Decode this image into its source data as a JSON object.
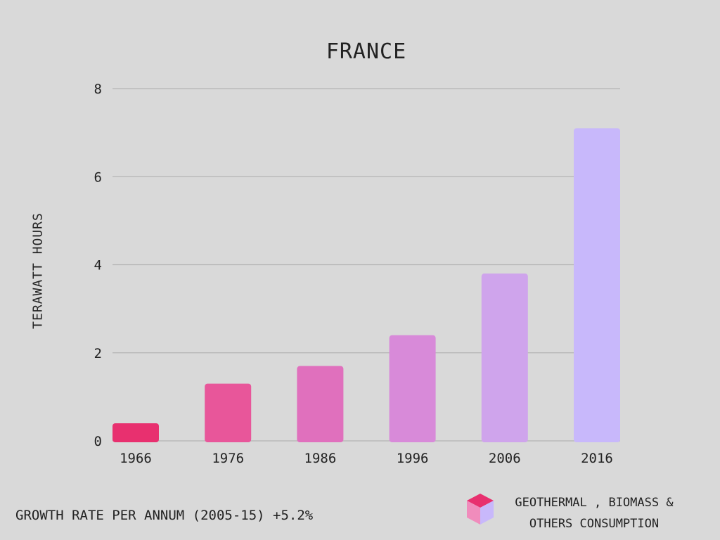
{
  "chart_data": {
    "type": "bar",
    "title": "FRANCE",
    "xlabel": "",
    "ylabel": "TERAWATT HOURS",
    "categories": [
      "1966",
      "1976",
      "1986",
      "1996",
      "2006",
      "2016"
    ],
    "values": [
      0.4,
      1.3,
      1.7,
      2.4,
      3.8,
      7.1
    ],
    "ylim": [
      0,
      8
    ],
    "yticks": [
      0,
      2,
      4,
      6,
      8
    ],
    "grid": true,
    "bar_colors": [
      "#e8306f",
      "#e8569a",
      "#e070bd",
      "#d88ad9",
      "#cfa4ec",
      "#c8b8fb"
    ],
    "legend": {
      "label_line1": "GEOTHERMAL , BIOMASS &",
      "label_line2": "OTHERS CONSUMPTION",
      "placement": "bottom-right"
    },
    "annotation": "GROWTH RATE PER ANNUM (2005-15) +5.2%"
  },
  "colors": {
    "background": "#d9d9d9",
    "grid": "#b4b4b4",
    "text": "#222222",
    "legend_top": "#e8306f",
    "legend_left": "#f08cbc",
    "legend_right": "#c8b8fb"
  }
}
